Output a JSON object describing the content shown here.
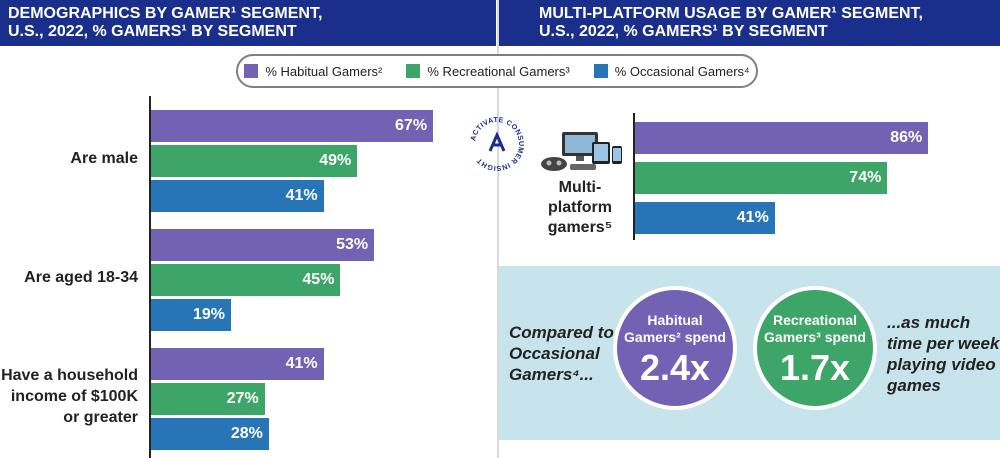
{
  "header_left": {
    "line1": "DEMOGRAPHICS BY GAMER¹ SEGMENT,",
    "line2": "U.S., 2022, % GAMERS¹ BY SEGMENT"
  },
  "header_right": {
    "line1": "MULTI-PLATFORM USAGE BY GAMER¹ SEGMENT,",
    "line2": "U.S., 2022, % GAMERS¹ BY SEGMENT"
  },
  "legend": [
    {
      "label": "% Habitual Gamers²",
      "color": "#7262b3"
    },
    {
      "label": "% Recreational Gamers³",
      "color": "#3ca567"
    },
    {
      "label": "% Occasional Gamers⁴",
      "color": "#2775b7"
    }
  ],
  "seal": {
    "text": "ACTIVATE CONSUMER INSIGHT"
  },
  "chart_data": [
    {
      "type": "bar",
      "orientation": "horizontal",
      "categories": [
        "Are male",
        "Are aged 18-34",
        "Have a household income of $100K or greater"
      ],
      "series": [
        {
          "name": "% Habitual Gamers²",
          "values": [
            67,
            53,
            41
          ]
        },
        {
          "name": "% Recreational Gamers³",
          "values": [
            49,
            45,
            27
          ]
        },
        {
          "name": "% Occasional Gamers⁴",
          "values": [
            41,
            19,
            28
          ]
        }
      ],
      "unit": "%",
      "xlim": [
        0,
        100
      ]
    },
    {
      "type": "bar",
      "orientation": "horizontal",
      "categories": [
        "Multi-platform gamers⁵"
      ],
      "series": [
        {
          "name": "% Habitual Gamers²",
          "values": [
            86
          ]
        },
        {
          "name": "% Recreational Gamers³",
          "values": [
            74
          ]
        },
        {
          "name": "% Occasional Gamers⁴",
          "values": [
            41
          ]
        }
      ],
      "unit": "%",
      "xlim": [
        0,
        100
      ]
    }
  ],
  "category_lines": [
    [
      "Are male"
    ],
    [
      "Are aged 18-34"
    ],
    [
      "Have a household",
      "income of $100K",
      "or greater"
    ]
  ],
  "mp_label_lines": [
    "Multi-",
    "platform",
    "gamers⁵"
  ],
  "comparison": {
    "left_lines": [
      "Compared to",
      "Occasional",
      "Gamers⁴..."
    ],
    "habitual": {
      "sub_line1": "Habitual",
      "sub_line2": "Gamers² spend",
      "value": "2.4x",
      "color": "#7262b3"
    },
    "recreational": {
      "sub_line1": "Recreational",
      "sub_line2": "Gamers³ spend",
      "value": "1.7x",
      "color": "#3ca567"
    },
    "right_lines": [
      "...as much",
      "time per week",
      "playing video",
      "games"
    ]
  }
}
